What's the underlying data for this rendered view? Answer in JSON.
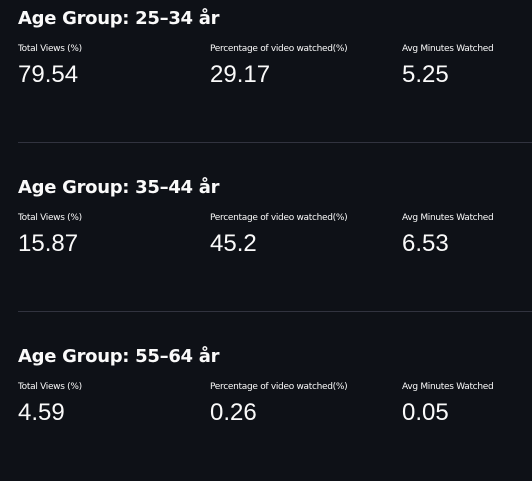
{
  "sections": [
    {
      "title": "Age Group: 25–34 år",
      "metrics": [
        {
          "label": "Total Views (%)",
          "value": "79.54"
        },
        {
          "label": "Percentage of video watched(%)",
          "value": "29.17"
        },
        {
          "label": "Avg Minutes Watched",
          "value": "5.25"
        }
      ]
    },
    {
      "title": "Age Group: 35–44 år",
      "metrics": [
        {
          "label": "Total Views (%)",
          "value": "15.87"
        },
        {
          "label": "Percentage of video watched(%)",
          "value": "45.2"
        },
        {
          "label": "Avg Minutes Watched",
          "value": "6.53"
        }
      ]
    },
    {
      "title": "Age Group: 55–64 år",
      "metrics": [
        {
          "label": "Total Views (%)",
          "value": "4.59"
        },
        {
          "label": "Percentage of video watched(%)",
          "value": "0.26"
        },
        {
          "label": "Avg Minutes Watched",
          "value": "0.05"
        }
      ]
    }
  ],
  "colors": {
    "background": "#0e1117",
    "text": "#fafafa",
    "divider": "#31333f"
  }
}
